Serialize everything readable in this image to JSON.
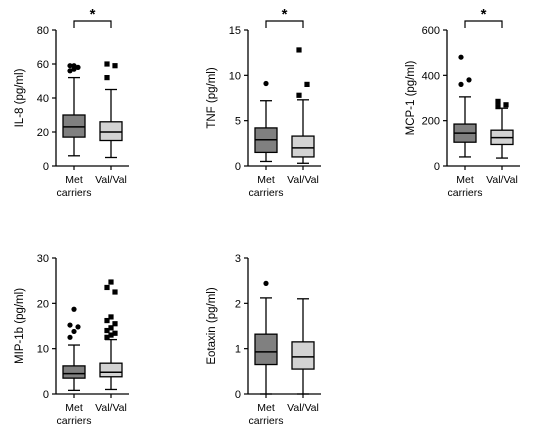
{
  "chart_data": [
    {
      "type": "boxplot",
      "ylabel": "IL-8 (pg/ml)",
      "ylim": [
        0,
        80
      ],
      "yticks": [
        0,
        20,
        40,
        60,
        80
      ],
      "categories": [
        "Met carriers",
        "Val/Val"
      ],
      "significance": {
        "label": "*",
        "between": [
          "Met carriers",
          "Val/Val"
        ]
      },
      "groups": [
        {
          "name": "Met carriers",
          "color": "#808080",
          "whisker_low": 6,
          "q1": 17,
          "median": 23,
          "q3": 30,
          "whisker_high": 52,
          "outliers": [
            56,
            57,
            58,
            59,
            59
          ]
        },
        {
          "name": "Val/Val",
          "color": "#d3d3d3",
          "whisker_low": 5,
          "q1": 15,
          "median": 20,
          "q3": 26,
          "whisker_high": 45,
          "outliers": [
            52,
            59,
            60
          ]
        }
      ]
    },
    {
      "type": "boxplot",
      "ylabel": "TNF (pg/ml)",
      "ylim": [
        0,
        15
      ],
      "yticks": [
        0,
        5,
        10,
        15
      ],
      "categories": [
        "Met carriers",
        "Val/Val"
      ],
      "significance": {
        "label": "*",
        "between": [
          "Met carriers",
          "Val/Val"
        ]
      },
      "groups": [
        {
          "name": "Met carriers",
          "color": "#808080",
          "whisker_low": 0.5,
          "q1": 1.5,
          "median": 2.9,
          "q3": 4.2,
          "whisker_high": 7.2,
          "outliers": [
            9.1
          ]
        },
        {
          "name": "Val/Val",
          "color": "#d3d3d3",
          "whisker_low": 0.3,
          "q1": 1.0,
          "median": 2.0,
          "q3": 3.3,
          "whisker_high": 7.3,
          "outliers": [
            7.8,
            9.0,
            12.8
          ]
        }
      ]
    },
    {
      "type": "boxplot",
      "ylabel": "MCP-1 (pg/ml)",
      "ylim": [
        0,
        600
      ],
      "yticks": [
        0,
        200,
        400,
        600
      ],
      "categories": [
        "Met carriers",
        "Val/Val"
      ],
      "significance": {
        "label": "*",
        "between": [
          "Met carriers",
          "Val/Val"
        ]
      },
      "groups": [
        {
          "name": "Met carriers",
          "color": "#808080",
          "whisker_low": 40,
          "q1": 105,
          "median": 145,
          "q3": 185,
          "whisker_high": 305,
          "outliers": [
            360,
            380,
            480
          ]
        },
        {
          "name": "Val/Val",
          "color": "#d3d3d3",
          "whisker_low": 35,
          "q1": 95,
          "median": 125,
          "q3": 158,
          "whisker_high": 255,
          "outliers": [
            262,
            270,
            285
          ]
        }
      ]
    },
    {
      "type": "boxplot",
      "ylabel": "MIP-1b (pg/ml)",
      "ylim": [
        0,
        30
      ],
      "yticks": [
        0,
        10,
        20,
        30
      ],
      "categories": [
        "Met carriers",
        "Val/Val"
      ],
      "groups": [
        {
          "name": "Met carriers",
          "color": "#808080",
          "whisker_low": 0.8,
          "q1": 3.5,
          "median": 4.5,
          "q3": 6.2,
          "whisker_high": 10.8,
          "outliers": [
            12.5,
            13.8,
            14.8,
            15.2,
            18.7
          ]
        },
        {
          "name": "Val/Val",
          "color": "#d3d3d3",
          "whisker_low": 1.0,
          "q1": 3.8,
          "median": 4.8,
          "q3": 6.8,
          "whisker_high": 12.0,
          "outliers": [
            12.5,
            13.0,
            13.4,
            14.0,
            14.6,
            15.5,
            16.2,
            17.0,
            22.5,
            23.5,
            24.7
          ]
        }
      ]
    },
    {
      "type": "boxplot",
      "ylabel": "Eotaxin (pg/ml)",
      "ylim": [
        0,
        3
      ],
      "yticks": [
        0,
        1,
        2,
        3
      ],
      "categories": [
        "Met carriers",
        "Val/Val"
      ],
      "groups": [
        {
          "name": "Met carriers",
          "color": "#808080",
          "whisker_low": 0.0,
          "q1": 0.65,
          "median": 0.93,
          "q3": 1.32,
          "whisker_high": 2.12,
          "outliers": [
            2.44
          ]
        },
        {
          "name": "Val/Val",
          "color": "#d3d3d3",
          "whisker_low": 0.0,
          "q1": 0.55,
          "median": 0.82,
          "q3": 1.15,
          "whisker_high": 2.1,
          "outliers": []
        }
      ]
    }
  ],
  "category_labels": [
    {
      "line1": "Met",
      "line2": "carriers"
    },
    {
      "line1": "Val/Val",
      "line2": ""
    }
  ]
}
